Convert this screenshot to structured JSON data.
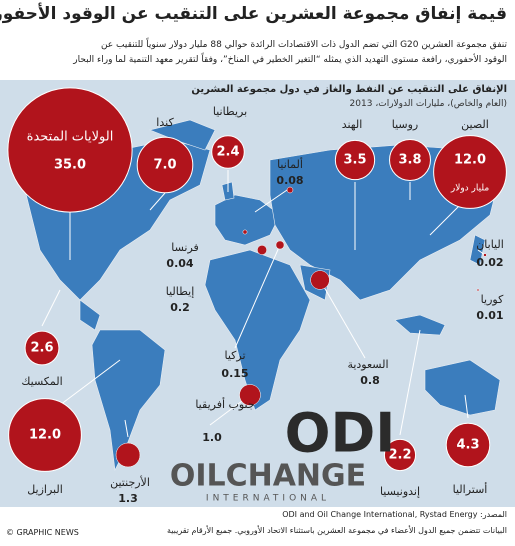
{
  "header": {
    "title": "قيمة إنفاق مجموعة العشرين على التنقيب عن الوقود الأحفوري",
    "intro": [
      "تنفق مجموعة العشرين G20 التي تضم الدول ذات الاقتصادات الرائدة حوالي 88 مليار دولار سنوياً للتنقيب عن",
      "الوقود الأحفوري، رافعة مستوى التهديد الذي يمثله “التغير الخطير في المناخ”، وفقاً لتقرير معهد التنمية لما وراء البحار"
    ]
  },
  "chart_data": {
    "type": "bubble-map",
    "title": "الإنفاق على التنقيب عن النفط والغاز في دول مجموعة العشرين",
    "subtitle": "(العام والخاص)، مليارات الدولارات، 2013",
    "unit": "مليار دولار",
    "color": "#b1141c",
    "categories": [
      "الولايات المتحدة",
      "كندا",
      "بريطانيا",
      "ألمانيا",
      "الهند",
      "روسيا",
      "الصين",
      "اليابان",
      "كوريا",
      "فرنسا",
      "إيطاليا",
      "تركيا",
      "السعودية",
      "المكسيك",
      "البرازيل",
      "الأرجنتين",
      "جنوب أفريقيا",
      "إندونيسيا",
      "أستراليا"
    ],
    "values": [
      35.0,
      7.0,
      2.4,
      0.08,
      3.5,
      3.8,
      12.0,
      0.02,
      0.01,
      0.04,
      0.2,
      0.15,
      0.8,
      2.6,
      12.0,
      1.3,
      1.0,
      2.2,
      4.3
    ],
    "value_labels": [
      "35.0",
      "7.0",
      "2.4",
      "0.08",
      "3.5",
      "3.8",
      "12.0",
      "0.02",
      "0.01",
      "0.04",
      "0.2",
      "0.15",
      "0.8",
      "2.6",
      "12.0",
      "1.3",
      "1.0",
      "2.2",
      "4.3"
    ]
  },
  "logos": {
    "odi": "ODI",
    "oilchange": "OILCHANGE",
    "international": "INTERNATIONAL"
  },
  "footer": {
    "note": "البيانات تتضمن جميع الدول الأعضاء في مجموعة العشرين باستثناء الاتحاد الأوروبي. جميع الأرقام تقريبية",
    "source": "المصدر: ODI and Oil Change International, Rystad Energy",
    "credit": "© GRAPHIC NEWS"
  }
}
